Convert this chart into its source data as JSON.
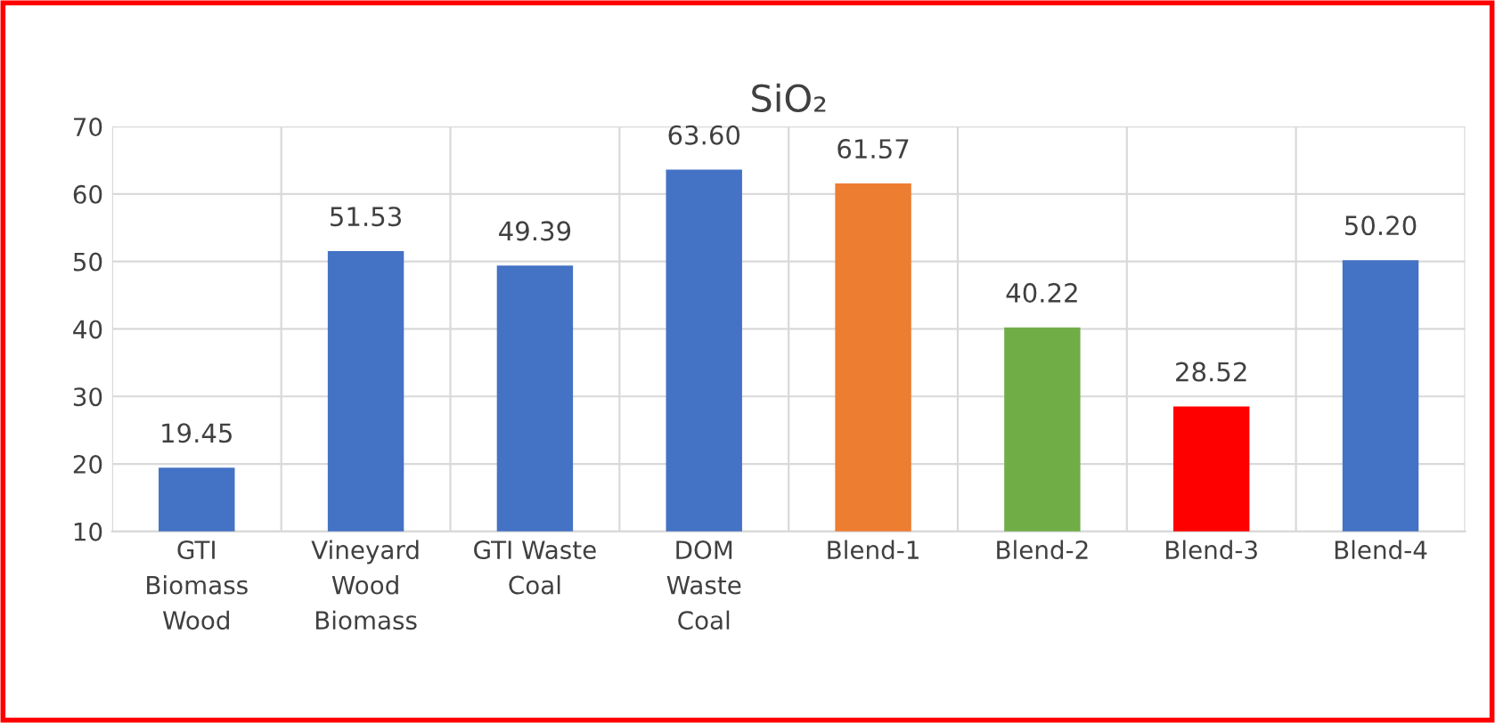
{
  "chart_data": {
    "type": "bar",
    "title": "SiO₂",
    "categories": [
      "GTI\nBiomass\nWood",
      "Vineyard\nWood\nBiomass",
      "GTI Waste\nCoal",
      "DOM\nWaste\nCoal",
      "Blend-1",
      "Blend-2",
      "Blend-3",
      "Blend-4"
    ],
    "values": [
      19.45,
      51.53,
      49.39,
      63.6,
      61.57,
      40.22,
      28.52,
      50.2
    ],
    "value_labels": [
      "19.45",
      "51.53",
      "49.39",
      "63.60",
      "61.57",
      "40.22",
      "28.52",
      "50.20"
    ],
    "colors": [
      "#4472c4",
      "#4472c4",
      "#4472c4",
      "#4472c4",
      "#ed7d31",
      "#70ad47",
      "#ff0000",
      "#4472c4"
    ],
    "ylim": [
      10,
      70
    ],
    "yticks": [
      10,
      20,
      30,
      40,
      50,
      60,
      70
    ],
    "grid": true
  }
}
